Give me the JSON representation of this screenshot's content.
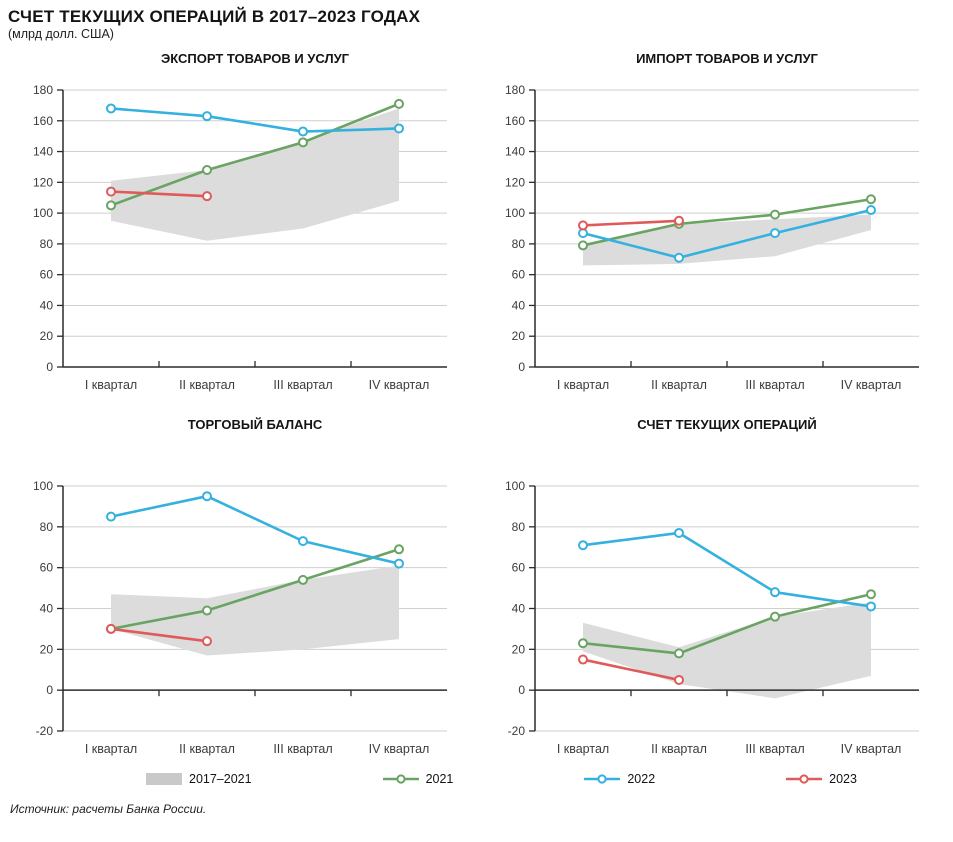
{
  "header": {
    "title": "СЧЕТ ТЕКУЩИХ ОПЕРАЦИЙ В 2017–2023 ГОДАХ",
    "subtitle": "(млрд долл. США)"
  },
  "source": {
    "text": "Источник: расчеты Банка России."
  },
  "palette": {
    "band": "#dcdcdc",
    "grid": "#cfcfcf",
    "axis": "#2b2b2b",
    "tick_text": "#3c3c3c",
    "green_2021": "#69a463",
    "blue_2022": "#35b1e0",
    "red_2023": "#e05a5a"
  },
  "legend": {
    "items": [
      {
        "type": "band",
        "label": "2017–2021",
        "color": "#c9c9c9"
      },
      {
        "type": "line",
        "label": "2021",
        "color": "#69a463"
      },
      {
        "type": "line",
        "label": "2022",
        "color": "#35b1e0"
      },
      {
        "type": "line",
        "label": "2023",
        "color": "#e05a5a"
      }
    ]
  },
  "chart_data": [
    {
      "type": "line",
      "title": "ЭКСПОРТ ТОВАРОВ И УСЛУГ",
      "categories": [
        "I квартал",
        "II квартал",
        "III квартал",
        "IV квартал"
      ],
      "ylim": [
        0,
        180
      ],
      "ytick": 20,
      "grid": true,
      "band": {
        "name": "2017–2021",
        "color": "#dcdcdc",
        "upper": [
          121,
          128,
          147,
          168
        ],
        "lower": [
          95,
          82,
          90,
          108
        ]
      },
      "series": [
        {
          "name": "2021",
          "color": "#69a463",
          "values": [
            105,
            128,
            146,
            171
          ]
        },
        {
          "name": "2022",
          "color": "#35b1e0",
          "values": [
            168,
            163,
            153,
            155
          ]
        },
        {
          "name": "2023",
          "color": "#e05a5a",
          "values": [
            114,
            111
          ]
        }
      ]
    },
    {
      "type": "line",
      "title": "ИМПОРТ ТОВАРОВ И УСЛУГ",
      "categories": [
        "I квартал",
        "II квартал",
        "III квартал",
        "IV квартал"
      ],
      "ylim": [
        0,
        180
      ],
      "ytick": 20,
      "grid": true,
      "band": {
        "name": "2017–2021",
        "color": "#dcdcdc",
        "upper": [
          80,
          93,
          96,
          99
        ],
        "lower": [
          66,
          67,
          72,
          89
        ]
      },
      "series": [
        {
          "name": "2021",
          "color": "#69a463",
          "values": [
            79,
            93,
            99,
            109
          ]
        },
        {
          "name": "2022",
          "color": "#35b1e0",
          "values": [
            87,
            71,
            87,
            102
          ]
        },
        {
          "name": "2023",
          "color": "#e05a5a",
          "values": [
            92,
            95
          ]
        }
      ]
    },
    {
      "type": "line",
      "title": "ТОРГОВЫЙ БАЛАНС",
      "categories": [
        "I квартал",
        "II квартал",
        "III квартал",
        "IV квартал"
      ],
      "ylim": [
        -20,
        100
      ],
      "ytick": 20,
      "grid": true,
      "band": {
        "name": "2017–2021",
        "color": "#dcdcdc",
        "upper": [
          47,
          45,
          54,
          61
        ],
        "lower": [
          30,
          17,
          20,
          25
        ]
      },
      "series": [
        {
          "name": "2021",
          "color": "#69a463",
          "values": [
            30,
            39,
            54,
            69
          ]
        },
        {
          "name": "2022",
          "color": "#35b1e0",
          "values": [
            85,
            95,
            73,
            62
          ]
        },
        {
          "name": "2023",
          "color": "#e05a5a",
          "values": [
            30,
            24
          ]
        }
      ]
    },
    {
      "type": "line",
      "title": "СЧЕТ ТЕКУЩИХ ОПЕРАЦИЙ",
      "categories": [
        "I квартал",
        "II квартал",
        "III квартал",
        "IV квартал"
      ],
      "ylim": [
        -20,
        100
      ],
      "ytick": 20,
      "grid": true,
      "band": {
        "name": "2017–2021",
        "color": "#dcdcdc",
        "upper": [
          33,
          21,
          36,
          43
        ],
        "lower": [
          19,
          3,
          -4,
          7
        ]
      },
      "series": [
        {
          "name": "2021",
          "color": "#69a463",
          "values": [
            23,
            18,
            36,
            47
          ]
        },
        {
          "name": "2022",
          "color": "#35b1e0",
          "values": [
            71,
            77,
            48,
            41
          ]
        },
        {
          "name": "2023",
          "color": "#e05a5a",
          "values": [
            15,
            5
          ]
        }
      ]
    }
  ]
}
